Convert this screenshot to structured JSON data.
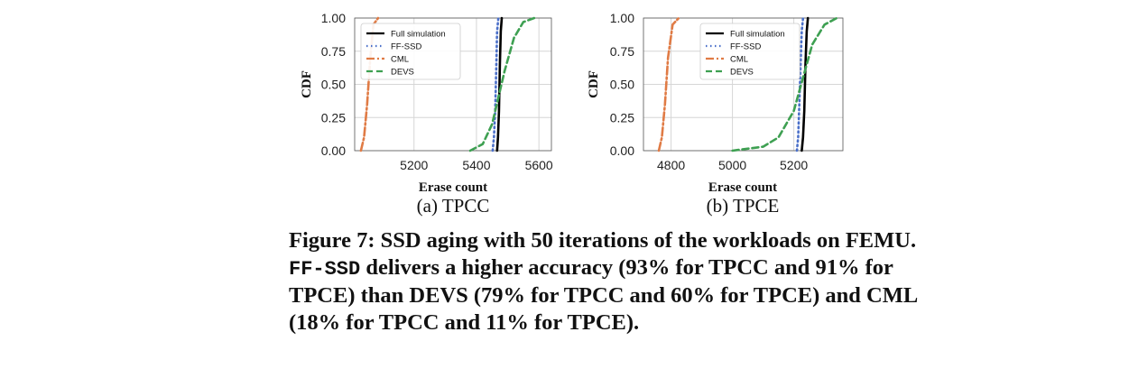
{
  "chart_data": [
    {
      "type": "line",
      "subcaption": "(a) TPCC",
      "xlabel": "Erase count",
      "ylabel": "CDF",
      "xlim": [
        5010,
        5640
      ],
      "ylim": [
        0,
        1
      ],
      "xticks": [
        "5200",
        "5400",
        "5600"
      ],
      "yticks": [
        "0.00",
        "0.25",
        "0.50",
        "0.75",
        "1.00"
      ],
      "grid": true,
      "legend": "top-left",
      "series": [
        {
          "name": "Full simulation",
          "color": "#000000",
          "dash": "solid",
          "x": [
            5466,
            5469,
            5472,
            5475,
            5478,
            5481
          ],
          "y": [
            0.0,
            0.1,
            0.3,
            0.65,
            0.9,
            1.0
          ]
        },
        {
          "name": "FF-SSD",
          "color": "#4a6fc9",
          "dash": "dotted",
          "x": [
            5452,
            5456,
            5460,
            5463,
            5466,
            5470
          ],
          "y": [
            0.0,
            0.1,
            0.3,
            0.6,
            0.9,
            1.0
          ]
        },
        {
          "name": "CML",
          "color": "#e07b45",
          "dash": "dashdot",
          "x": [
            5030,
            5040,
            5050,
            5060,
            5070,
            5085
          ],
          "y": [
            0.0,
            0.1,
            0.35,
            0.7,
            0.95,
            1.0
          ]
        },
        {
          "name": "DEVS",
          "color": "#3ea052",
          "dash": "dashed",
          "x": [
            5380,
            5420,
            5450,
            5470,
            5490,
            5520,
            5550,
            5585
          ],
          "y": [
            0.0,
            0.05,
            0.2,
            0.4,
            0.6,
            0.85,
            0.97,
            1.0
          ]
        }
      ]
    },
    {
      "type": "line",
      "subcaption": "(b) TPCE",
      "xlabel": "Erase count",
      "ylabel": "CDF",
      "xlim": [
        4710,
        5360
      ],
      "ylim": [
        0,
        1
      ],
      "xticks": [
        "4800",
        "5000",
        "5200"
      ],
      "yticks": [
        "0.00",
        "0.25",
        "0.50",
        "0.75",
        "1.00"
      ],
      "grid": true,
      "legend": "top-right",
      "series": [
        {
          "name": "Full simulation",
          "color": "#000000",
          "dash": "solid",
          "x": [
            5226,
            5230,
            5234,
            5238,
            5242,
            5246
          ],
          "y": [
            0.0,
            0.1,
            0.3,
            0.65,
            0.9,
            1.0
          ]
        },
        {
          "name": "FF-SSD",
          "color": "#4a6fc9",
          "dash": "dotted",
          "x": [
            5210,
            5214,
            5218,
            5222,
            5226,
            5230
          ],
          "y": [
            0.0,
            0.1,
            0.35,
            0.65,
            0.9,
            1.0
          ]
        },
        {
          "name": "CML",
          "color": "#e07b45",
          "dash": "dashdot",
          "x": [
            4760,
            4770,
            4780,
            4790,
            4805,
            4825
          ],
          "y": [
            0.0,
            0.1,
            0.35,
            0.7,
            0.95,
            1.0
          ]
        },
        {
          "name": "DEVS",
          "color": "#3ea052",
          "dash": "dashed",
          "x": [
            5000,
            5100,
            5150,
            5200,
            5230,
            5260,
            5300,
            5340
          ],
          "y": [
            0.0,
            0.03,
            0.1,
            0.3,
            0.55,
            0.8,
            0.95,
            1.0
          ]
        }
      ]
    }
  ],
  "caption": {
    "part1": "Figure 7: SSD aging with 50 iterations of the workloads on FEMU. ",
    "mono": "FF-SSD",
    "part2": " delivers a higher accuracy (93% for TPCC and 91% for TPCE) than DEVS (79% for TPCC and 60% for TPCE) and CML (18% for TPCC and 11% for TPCE)."
  }
}
